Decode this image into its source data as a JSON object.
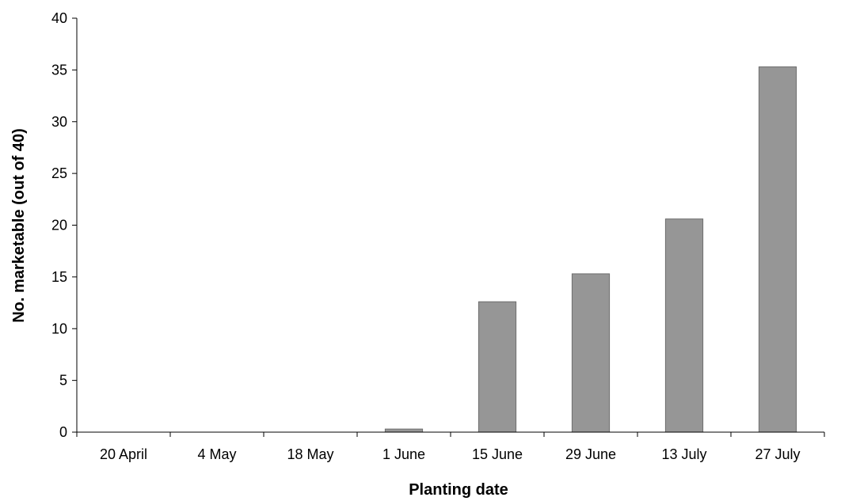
{
  "chart_data": {
    "type": "bar",
    "title": "",
    "xlabel": "Planting date",
    "ylabel": "No. marketable (out of 40)",
    "categories": [
      "20 April",
      "4 May",
      "18 May",
      "1 June",
      "15 June",
      "29 June",
      "13 July",
      "27 July"
    ],
    "values": [
      0,
      0,
      0,
      0.3,
      12.6,
      15.3,
      20.6,
      35.3
    ],
    "ylim": [
      0,
      40
    ],
    "yticks": [
      0,
      5,
      10,
      15,
      20,
      25,
      30,
      35,
      40
    ],
    "grid": false,
    "legend": "none",
    "colors": {
      "bar_fill": "#969696",
      "bar_stroke": "#6e6e6e",
      "axis": "#000000"
    }
  }
}
